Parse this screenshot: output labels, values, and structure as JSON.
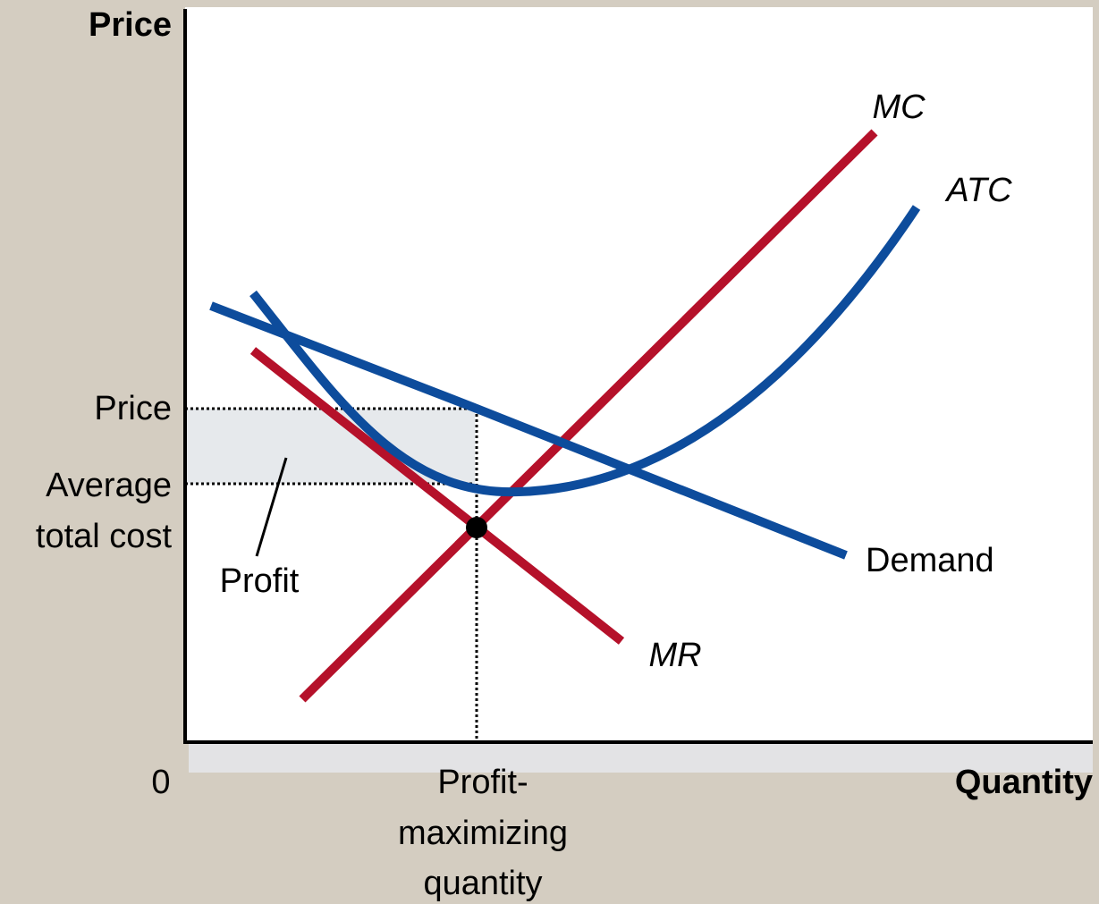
{
  "axes": {
    "y_title": "Price",
    "x_title": "Quantity",
    "origin": "0"
  },
  "levels": {
    "price": "Price",
    "average_total_cost": [
      "Average",
      "total cost"
    ]
  },
  "regions": {
    "profit": "Profit"
  },
  "quantity": {
    "label": [
      "Profit-",
      "maximizing",
      "quantity"
    ]
  },
  "curves": {
    "mc": "MC",
    "atc": "ATC",
    "demand": "Demand",
    "mr": "MR"
  }
}
